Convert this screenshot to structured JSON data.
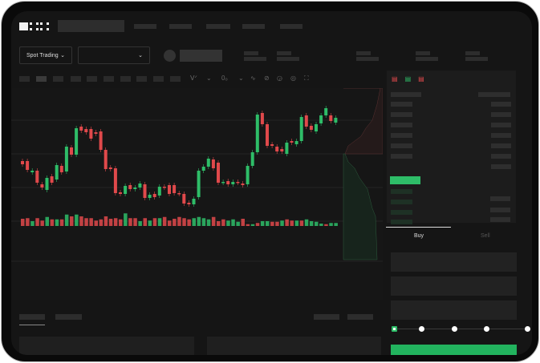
{
  "brand": {
    "logo_text": "OKX"
  },
  "header": {
    "nav_items": [
      "",
      "",
      "",
      "",
      ""
    ]
  },
  "market": {
    "mode_select": "Spot Trading",
    "pair_select": ""
  },
  "order_tabs": {
    "buy": "Buy",
    "sell": "Sell"
  },
  "colors": {
    "up": "#2ebd68",
    "down": "#e0494b",
    "background": "#151515",
    "buy_button": "#22b35e"
  },
  "toolbar": {
    "icons": [
      "indicator-icon",
      "chart-type-icon",
      "line-icon",
      "draw-icon",
      "camera-icon",
      "settings-icon",
      "fullscreen-icon"
    ]
  },
  "chart_data": {
    "type": "candlestick",
    "candles": [
      [
        57,
        53
      ],
      [
        57,
        46
      ],
      [
        43,
        45
      ],
      [
        45,
        30
      ],
      [
        28,
        24
      ],
      [
        21,
        36
      ],
      [
        38,
        30
      ],
      [
        34,
        52
      ],
      [
        51,
        43
      ],
      [
        44,
        75
      ],
      [
        74,
        65
      ],
      [
        65,
        98
      ],
      [
        100,
        95
      ],
      [
        97,
        93
      ],
      [
        97,
        85
      ],
      [
        93,
        91
      ],
      [
        94,
        71
      ],
      [
        71,
        47
      ],
      [
        49,
        47
      ],
      [
        48,
        17
      ],
      [
        18,
        16
      ],
      [
        16,
        26
      ],
      [
        27,
        22
      ],
      [
        22,
        24
      ],
      [
        24,
        29
      ],
      [
        28,
        11
      ],
      [
        11,
        15
      ],
      [
        16,
        12
      ],
      [
        14,
        25
      ],
      [
        25,
        24
      ],
      [
        27,
        16
      ],
      [
        27,
        17
      ],
      [
        17,
        16
      ],
      [
        16,
        4
      ],
      [
        5,
        3
      ],
      [
        3,
        10
      ],
      [
        12,
        45
      ],
      [
        45,
        50
      ],
      [
        50,
        60
      ],
      [
        59,
        48
      ],
      [
        55,
        30
      ],
      [
        30,
        31
      ],
      [
        32,
        28
      ],
      [
        28,
        31
      ],
      [
        31,
        30
      ],
      [
        29,
        27
      ],
      [
        28,
        51
      ],
      [
        51,
        68
      ],
      [
        68,
        115
      ],
      [
        117,
        103
      ],
      [
        103,
        76
      ],
      [
        78,
        76
      ],
      [
        75,
        69
      ],
      [
        72,
        69
      ],
      [
        66,
        80
      ],
      [
        82,
        80
      ],
      [
        78,
        82
      ],
      [
        82,
        112
      ],
      [
        114,
        100
      ],
      [
        101,
        96
      ],
      [
        94,
        103
      ],
      [
        104,
        114
      ],
      [
        114,
        123
      ],
      [
        114,
        107
      ],
      [
        105,
        111
      ]
    ],
    "volume": [
      [
        12,
        "down"
      ],
      [
        13,
        "down"
      ],
      [
        8,
        "up"
      ],
      [
        13,
        "down"
      ],
      [
        9,
        "down"
      ],
      [
        15,
        "up"
      ],
      [
        11,
        "down"
      ],
      [
        11,
        "up"
      ],
      [
        11,
        "down"
      ],
      [
        19,
        "up"
      ],
      [
        16,
        "down"
      ],
      [
        19,
        "up"
      ],
      [
        16,
        "down"
      ],
      [
        13,
        "down"
      ],
      [
        13,
        "down"
      ],
      [
        9,
        "down"
      ],
      [
        11,
        "down"
      ],
      [
        16,
        "down"
      ],
      [
        12,
        "down"
      ],
      [
        13,
        "down"
      ],
      [
        11,
        "down"
      ],
      [
        21,
        "up"
      ],
      [
        13,
        "down"
      ],
      [
        13,
        "down"
      ],
      [
        8,
        "up"
      ],
      [
        13,
        "down"
      ],
      [
        9,
        "up"
      ],
      [
        13,
        "down"
      ],
      [
        13,
        "up"
      ],
      [
        15,
        "down"
      ],
      [
        9,
        "down"
      ],
      [
        12,
        "down"
      ],
      [
        15,
        "down"
      ],
      [
        13,
        "down"
      ],
      [
        11,
        "down"
      ],
      [
        13,
        "up"
      ],
      [
        15,
        "up"
      ],
      [
        13,
        "up"
      ],
      [
        11,
        "up"
      ],
      [
        15,
        "down"
      ],
      [
        8,
        "down"
      ],
      [
        11,
        "down"
      ],
      [
        9,
        "up"
      ],
      [
        11,
        "up"
      ],
      [
        7,
        "up"
      ],
      [
        12,
        "down"
      ],
      [
        3,
        "down"
      ],
      [
        3,
        "up"
      ],
      [
        5,
        "down"
      ],
      [
        8,
        "up"
      ],
      [
        8,
        "up"
      ],
      [
        7,
        "down"
      ],
      [
        7,
        "down"
      ],
      [
        9,
        "up"
      ],
      [
        11,
        "down"
      ],
      [
        9,
        "down"
      ],
      [
        9,
        "up"
      ],
      [
        9,
        "down"
      ],
      [
        11,
        "up"
      ],
      [
        8,
        "up"
      ],
      [
        7,
        "up"
      ],
      [
        4,
        "up"
      ],
      [
        3,
        "down"
      ],
      [
        5,
        "up"
      ],
      [
        5,
        "up"
      ]
    ]
  }
}
